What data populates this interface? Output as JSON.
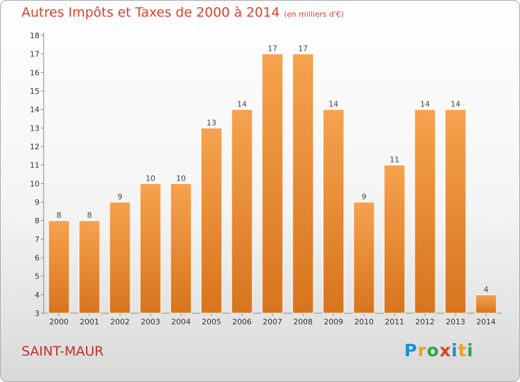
{
  "header": {
    "title": "Autres Impôts et Taxes de 2000 à 2014",
    "unit": "(en milliers d'€)"
  },
  "footer": {
    "city": "SAINT-MAUR",
    "logo_letters": [
      "P",
      "r",
      "o",
      "x",
      "i",
      "t",
      "i"
    ],
    "logo_colors": [
      "#1f8fd1",
      "#e8a21f",
      "#2aa84a",
      "#e0402a",
      "#1f8fd1",
      "#e8a21f",
      "#2aa84a"
    ]
  },
  "chart_data": {
    "type": "bar",
    "title": "Autres Impôts et Taxes de 2000 à 2014",
    "categories": [
      "2000",
      "2001",
      "2002",
      "2003",
      "2004",
      "2005",
      "2006",
      "2007",
      "2008",
      "2009",
      "2010",
      "2011",
      "2012",
      "2013",
      "2014"
    ],
    "values": [
      8,
      8,
      9,
      10,
      10,
      13,
      14,
      17,
      17,
      14,
      9,
      11,
      14,
      14,
      4
    ],
    "ylim": [
      3,
      18
    ],
    "yticks": [
      3,
      4,
      5,
      6,
      7,
      8,
      9,
      10,
      11,
      12,
      13,
      14,
      15,
      16,
      17,
      18
    ],
    "grid": false,
    "colors": {
      "bar_light": "#f6a24e",
      "bar_dark": "#d8741e",
      "axis": "#888888"
    }
  }
}
